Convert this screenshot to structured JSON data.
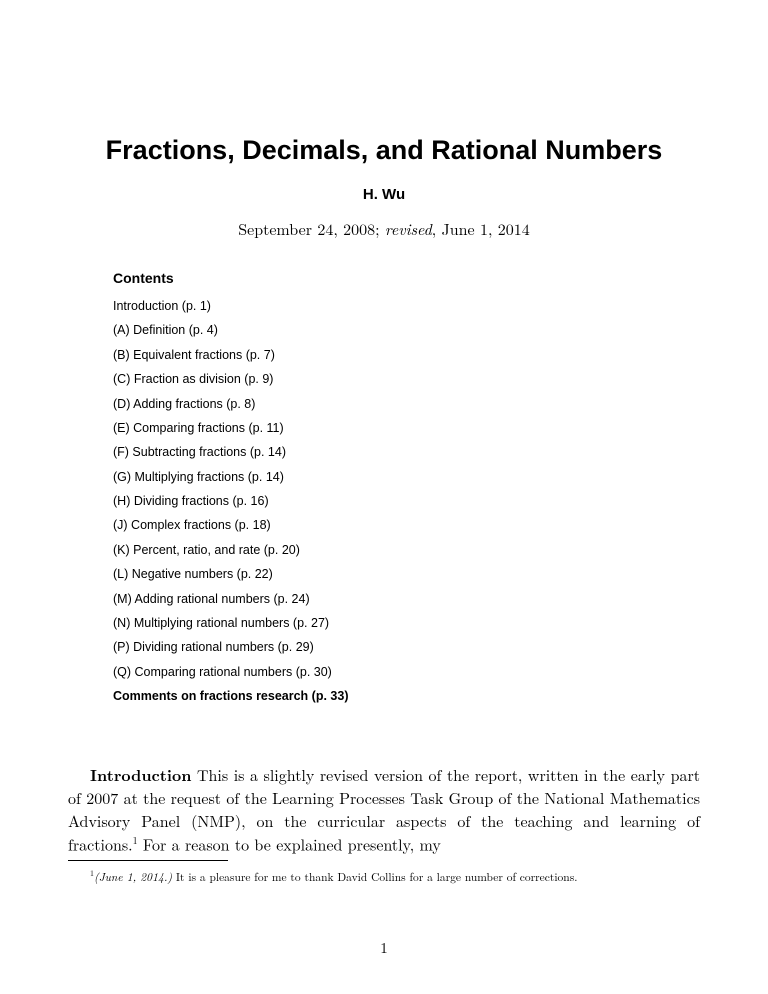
{
  "title": "Fractions, Decimals, and Rational Numbers",
  "author": "H. Wu",
  "date_prefix": "September 24, 2008; ",
  "date_revised_word": "revised",
  "date_suffix": ", June 1, 2014",
  "contents_heading": "Contents",
  "toc": [
    {
      "text": "Introduction (p. 1)",
      "bold": false
    },
    {
      "text": "(A) Definition (p. 4)",
      "bold": false
    },
    {
      "text": "(B) Equivalent fractions (p. 7)",
      "bold": false
    },
    {
      "text": "(C) Fraction as division (p. 9)",
      "bold": false
    },
    {
      "text": "(D) Adding fractions (p. 8)",
      "bold": false
    },
    {
      "text": "(E) Comparing fractions (p. 11)",
      "bold": false
    },
    {
      "text": "(F) Subtracting fractions (p. 14)",
      "bold": false
    },
    {
      "text": "(G) Multiplying fractions (p. 14)",
      "bold": false
    },
    {
      "text": "(H) Dividing fractions (p. 16)",
      "bold": false
    },
    {
      "text": "(J) Complex fractions (p. 18)",
      "bold": false
    },
    {
      "text": "(K) Percent, ratio, and rate (p. 20)",
      "bold": false
    },
    {
      "text": "(L) Negative numbers (p. 22)",
      "bold": false
    },
    {
      "text": "(M) Adding rational numbers (p. 24)",
      "bold": false
    },
    {
      "text": "(N) Multiplying rational numbers (p. 27)",
      "bold": false
    },
    {
      "text": "(P) Dividing rational numbers (p. 29)",
      "bold": false
    },
    {
      "text": "(Q) Comparing rational numbers (p. 30)",
      "bold": false
    },
    {
      "text": "Comments on fractions research (p. 33)",
      "bold": true
    }
  ],
  "intro_label": "Introduction",
  "intro_text_1": "  This is a slightly revised version of the report, written in the early part of 2007 at the request of the Learning Processes Task Group of the National Mathematics Advisory Panel (NMP), on the curricular aspects of the teaching and learning of fractions.",
  "intro_fn_mark": "1",
  "intro_text_2": " For a reason to be explained presently, my",
  "footnote_mark": "1",
  "footnote_date": "(June 1, 2014.)",
  "footnote_text": " It is a pleasure for me to thank David Collins for a large number of corrections.",
  "page_number": "1"
}
